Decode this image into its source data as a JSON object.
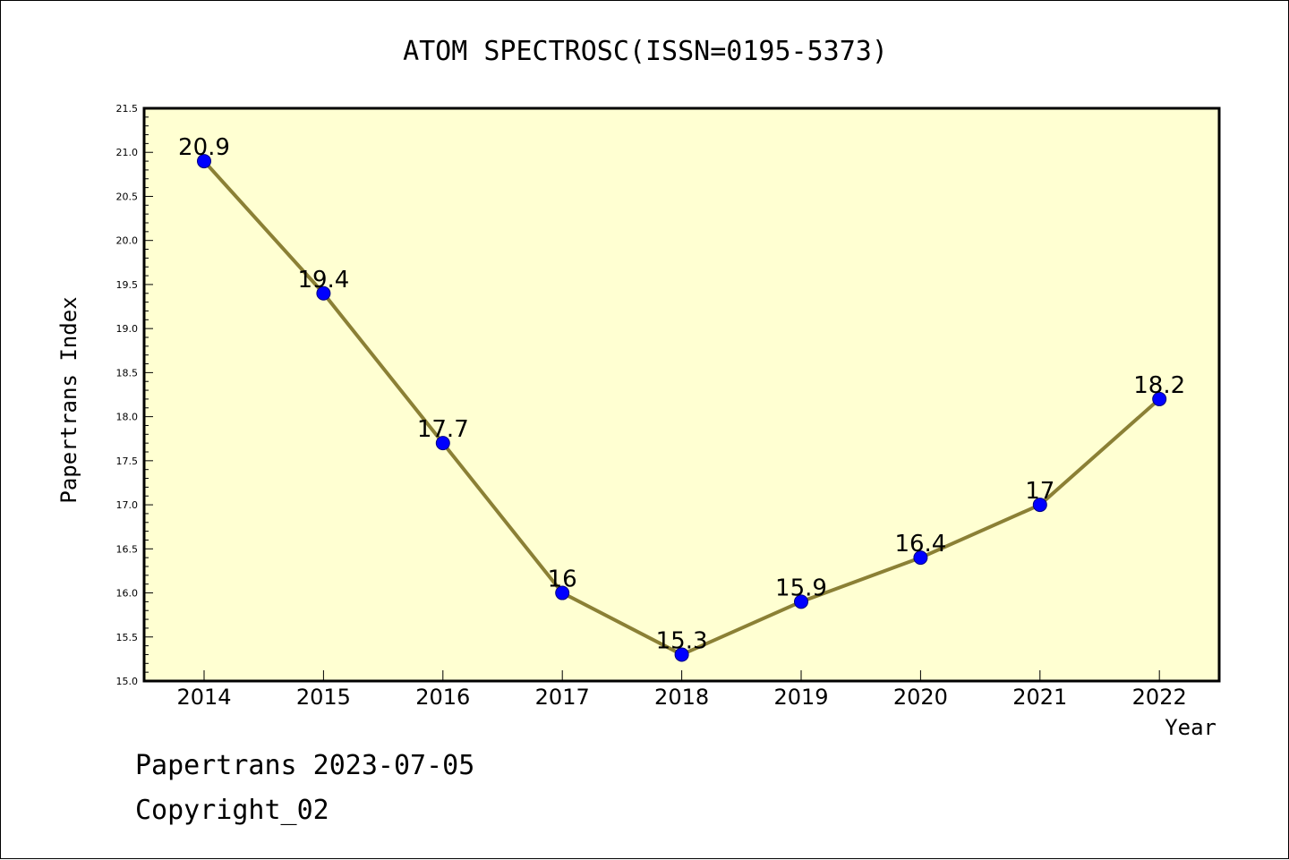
{
  "chart_data": {
    "type": "line",
    "title": "ATOM SPECTROSC(ISSN=0195-5373)",
    "xlabel": "Year",
    "ylabel": "Papertrans Index",
    "categories": [
      "2014",
      "2015",
      "2016",
      "2017",
      "2018",
      "2019",
      "2020",
      "2021",
      "2022"
    ],
    "series": [
      {
        "values": [
          20.9,
          19.4,
          17.7,
          16.0,
          15.3,
          15.9,
          16.4,
          17.0,
          18.2
        ],
        "labels": [
          "20.9",
          "19.4",
          "17.7",
          "16",
          "15.3",
          "15.9",
          "16.4",
          "17",
          "18.2"
        ]
      }
    ],
    "ylim": [
      15.0,
      21.5
    ],
    "yticks": [
      "15.0",
      "15.5",
      "16.0",
      "16.5",
      "17.0",
      "17.5",
      "18.0",
      "18.5",
      "19.0",
      "19.5",
      "20.0",
      "20.5",
      "21.0",
      "21.5"
    ],
    "grid": false,
    "colors": {
      "plot_background": "#ffffd2",
      "line": "#8b8035",
      "marker": "#0000ff"
    }
  },
  "footer": {
    "line1": "Papertrans 2023-07-05",
    "line2": "Copyright_02"
  }
}
